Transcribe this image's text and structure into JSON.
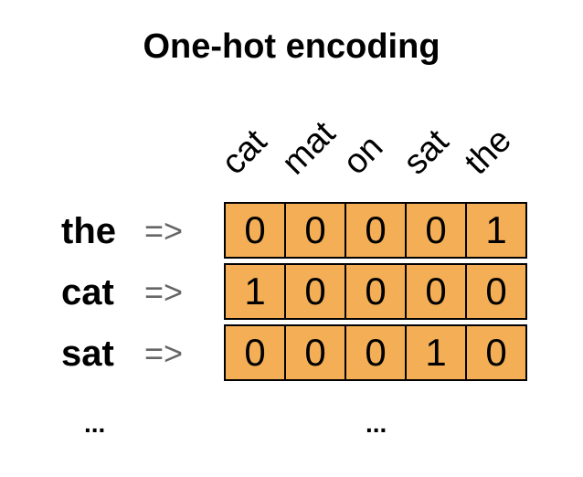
{
  "title": "One-hot encoding",
  "vocabulary": [
    "cat",
    "mat",
    "on",
    "sat",
    "the"
  ],
  "arrow": "=>",
  "rows": [
    {
      "word": "the",
      "vector": [
        0,
        0,
        0,
        0,
        1
      ]
    },
    {
      "word": "cat",
      "vector": [
        1,
        0,
        0,
        0,
        0
      ]
    },
    {
      "word": "sat",
      "vector": [
        0,
        0,
        0,
        1,
        0
      ]
    }
  ],
  "ellipsis": [
    "...",
    "..."
  ],
  "colors": {
    "cell_fill": "#f4ae56",
    "arrow": "#666666"
  }
}
